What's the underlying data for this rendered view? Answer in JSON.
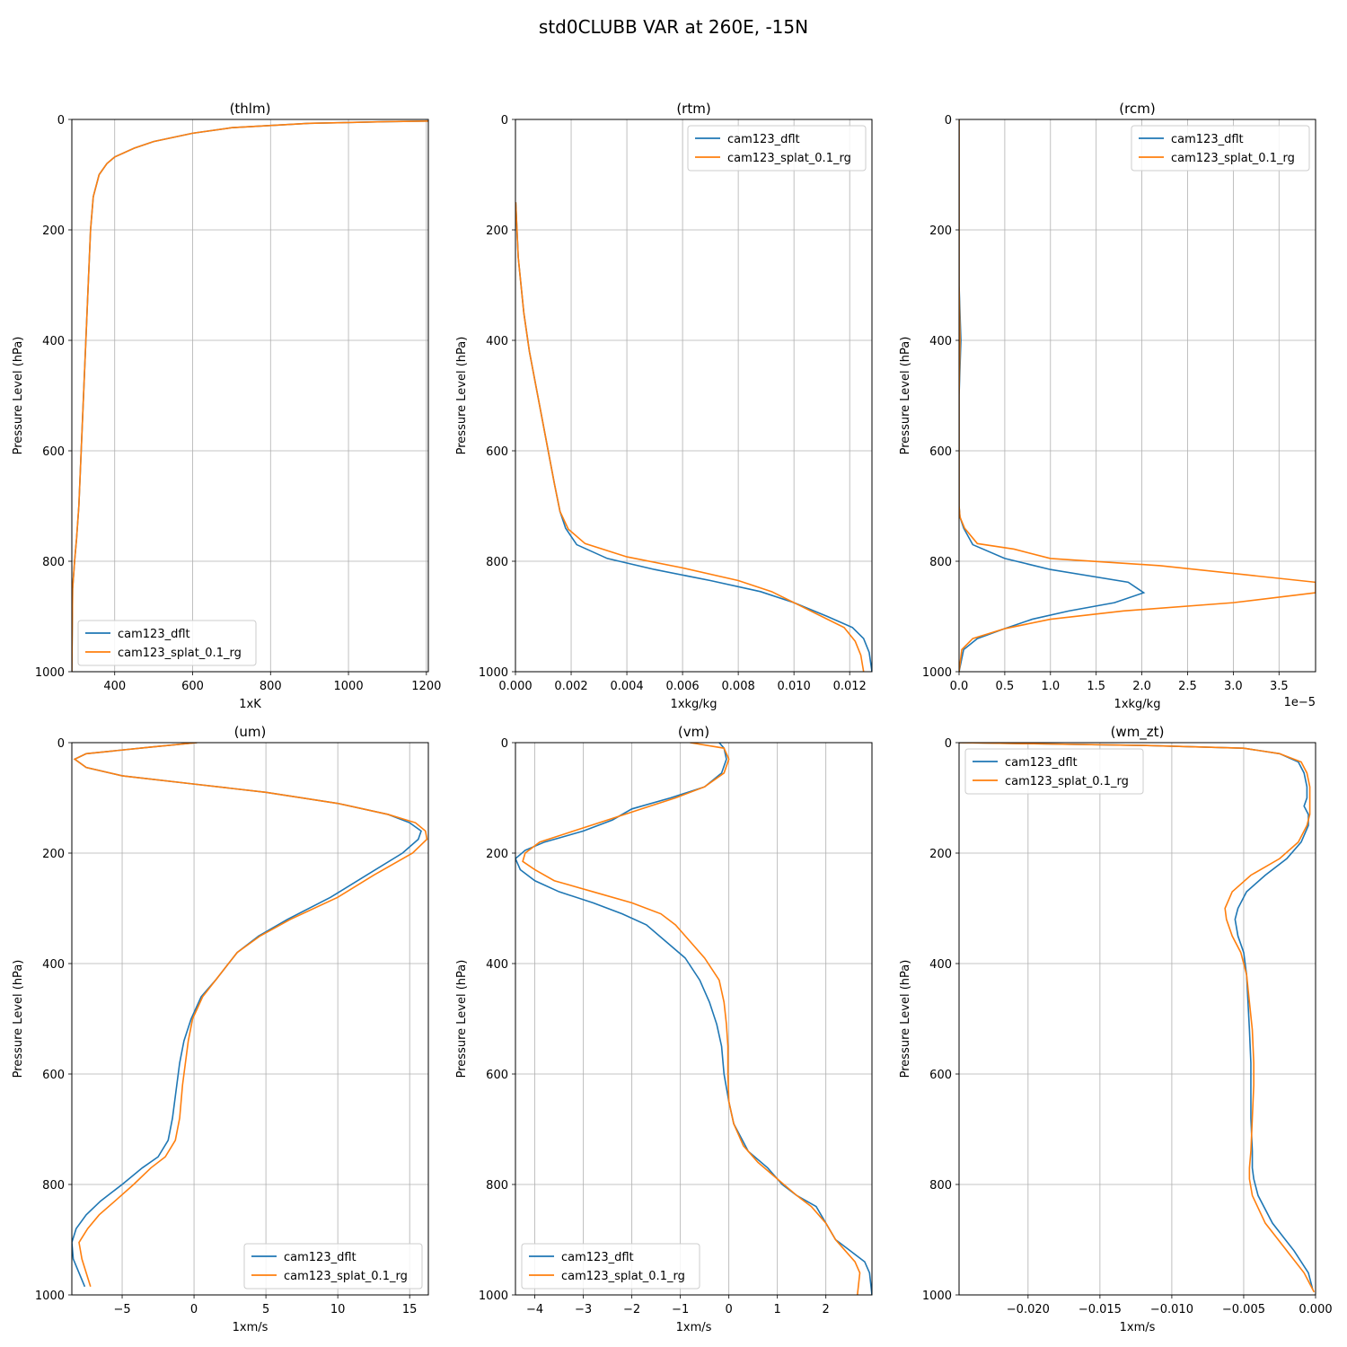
{
  "figure": {
    "suptitle": "std0CLUBB VAR at 260E, -15N"
  },
  "chart_data": [
    {
      "type": "line",
      "title": "(thlm)",
      "xlabel": "1xK",
      "ylabel": "Pressure Level (hPa)",
      "xlim": [
        290,
        1205
      ],
      "ylim": [
        1000,
        0
      ],
      "xticks": [
        400,
        600,
        800,
        1000,
        1200
      ],
      "xtick_labels": [
        "400",
        "600",
        "800",
        "1000",
        "1200"
      ],
      "yticks": [
        0,
        200,
        400,
        600,
        800,
        1000
      ],
      "ytick_labels": [
        "0",
        "200",
        "400",
        "600",
        "800",
        "1000"
      ],
      "grid": true,
      "legend": "lower-left",
      "series": [
        {
          "name": "cam123_dflt",
          "color": "#1f77b4",
          "x": [
            1205,
            1100,
            900,
            700,
            600,
            500,
            450,
            400,
            380,
            360,
            345,
            338,
            332,
            326,
            320,
            314,
            308,
            302,
            297,
            292,
            290
          ],
          "y": [
            3,
            4,
            7,
            15,
            25,
            40,
            52,
            68,
            80,
            100,
            140,
            200,
            300,
            400,
            500,
            600,
            700,
            760,
            800,
            850,
            1000
          ]
        },
        {
          "name": "cam123_splat_0.1_rg",
          "color": "#ff7f0e",
          "x": [
            1205,
            1100,
            900,
            700,
            600,
            500,
            450,
            400,
            380,
            360,
            345,
            338,
            332,
            326,
            320,
            314,
            308,
            302,
            297,
            292,
            290
          ],
          "y": [
            3,
            4,
            7,
            15,
            25,
            40,
            52,
            68,
            80,
            100,
            140,
            200,
            300,
            400,
            500,
            600,
            700,
            760,
            800,
            850,
            1000
          ]
        }
      ]
    },
    {
      "type": "line",
      "title": "(rtm)",
      "xlabel": "1xkg/kg",
      "ylabel": "Pressure Level (hPa)",
      "xlim": [
        0,
        0.0128
      ],
      "ylim": [
        1000,
        0
      ],
      "xticks": [
        0,
        0.002,
        0.004,
        0.006,
        0.008,
        0.01,
        0.012
      ],
      "xtick_labels": [
        "0.000",
        "0.002",
        "0.004",
        "0.006",
        "0.008",
        "0.010",
        "0.012"
      ],
      "yticks": [
        0,
        200,
        400,
        600,
        800,
        1000
      ],
      "ytick_labels": [
        "0",
        "200",
        "400",
        "600",
        "800",
        "1000"
      ],
      "grid": true,
      "legend": "upper-right",
      "series": [
        {
          "name": "cam123_dflt",
          "color": "#1f77b4",
          "x": [
            1e-05,
            0.0001,
            0.0003,
            0.0005,
            0.0008,
            0.0011,
            0.0014,
            0.0016,
            0.0018,
            0.0022,
            0.0033,
            0.005,
            0.007,
            0.0088,
            0.01,
            0.0112,
            0.0121,
            0.0125,
            0.0127,
            0.0128
          ],
          "y": [
            150,
            250,
            350,
            420,
            500,
            580,
            660,
            710,
            740,
            770,
            795,
            815,
            835,
            855,
            875,
            900,
            920,
            940,
            965,
            1000
          ]
        },
        {
          "name": "cam123_splat_0.1_rg",
          "color": "#ff7f0e",
          "x": [
            1e-05,
            0.0001,
            0.0003,
            0.0005,
            0.0008,
            0.0011,
            0.0014,
            0.0016,
            0.0019,
            0.0025,
            0.004,
            0.006,
            0.008,
            0.0092,
            0.01,
            0.011,
            0.0118,
            0.0122,
            0.0124,
            0.0125
          ],
          "y": [
            150,
            250,
            350,
            420,
            500,
            580,
            660,
            710,
            742,
            768,
            792,
            812,
            835,
            855,
            875,
            900,
            920,
            945,
            970,
            1000
          ]
        }
      ]
    },
    {
      "type": "line",
      "title": "(rcm)",
      "xlabel": "1xkg/kg",
      "ylabel": "Pressure Level (hPa)",
      "xlim": [
        0,
        3.9e-05
      ],
      "ylim": [
        1000,
        0
      ],
      "xticks": [
        0,
        5e-06,
        1e-05,
        1.5e-05,
        2e-05,
        2.5e-05,
        3e-05,
        3.5e-05
      ],
      "xtick_labels": [
        "0.0",
        "0.5",
        "1.0",
        "1.5",
        "2.0",
        "2.5",
        "3.0",
        "3.5"
      ],
      "x_offset_label": "1e−5",
      "yticks": [
        0,
        200,
        400,
        600,
        800,
        1000
      ],
      "ytick_labels": [
        "0",
        "200",
        "400",
        "600",
        "800",
        "1000"
      ],
      "grid": true,
      "legend": "upper-right",
      "series": [
        {
          "name": "cam123_dflt",
          "color": "#1f77b4",
          "x": [
            0,
            0,
            2e-07,
            0,
            0,
            0,
            1e-07,
            5e-07,
            1.5e-06,
            5e-06,
            1e-05,
            1.85e-05,
            2.02e-05,
            1.7e-05,
            1.2e-05,
            8e-06,
            5e-06,
            2e-06,
            5e-07,
            0
          ],
          "y": [
            0,
            300,
            400,
            500,
            600,
            700,
            720,
            740,
            770,
            795,
            815,
            838,
            857,
            875,
            890,
            905,
            922,
            940,
            960,
            1000
          ]
        },
        {
          "name": "cam123_splat_0.1_rg",
          "color": "#ff7f0e",
          "x": [
            0,
            0,
            1e-07,
            0,
            0,
            0,
            1e-07,
            6e-07,
            2e-06,
            6e-06,
            1e-05,
            2.2e-05,
            3.9e-05,
            3.9e-05,
            3e-05,
            1.8e-05,
            1e-05,
            5e-06,
            1.5e-06,
            3e-07,
            0
          ],
          "y": [
            0,
            300,
            400,
            500,
            600,
            700,
            720,
            740,
            768,
            778,
            795,
            808,
            838,
            857,
            875,
            890,
            905,
            922,
            940,
            960,
            1000
          ]
        }
      ]
    },
    {
      "type": "line",
      "title": "(um)",
      "xlabel": "1xm/s",
      "ylabel": "Pressure Level (hPa)",
      "xlim": [
        -8.5,
        16.3
      ],
      "ylim": [
        1000,
        0
      ],
      "xticks": [
        -5,
        0,
        5,
        10,
        15
      ],
      "xtick_labels": [
        "−5",
        "0",
        "5",
        "10",
        "15"
      ],
      "yticks": [
        0,
        200,
        400,
        600,
        800,
        1000
      ],
      "ytick_labels": [
        "0",
        "200",
        "400",
        "600",
        "800",
        "1000"
      ],
      "grid": true,
      "legend": "lower-right",
      "series": [
        {
          "name": "cam123_dflt",
          "color": "#1f77b4",
          "x": [
            0.2,
            -3,
            -7.5,
            -8.3,
            -7.5,
            -5,
            0,
            5,
            10,
            13.5,
            15,
            15.8,
            15.6,
            14.5,
            12,
            9.5,
            6.5,
            4.5,
            3,
            1.5,
            0.5,
            -0.2,
            -0.7,
            -1,
            -1.2,
            -1.5,
            -1.8,
            -2.5,
            -3.6,
            -5,
            -6.5,
            -7.5,
            -8.2,
            -8.5,
            -8.4,
            -8,
            -7.6
          ],
          "y": [
            0,
            8,
            20,
            30,
            45,
            60,
            75,
            90,
            110,
            130,
            145,
            160,
            175,
            200,
            240,
            280,
            320,
            350,
            380,
            430,
            460,
            500,
            540,
            580,
            620,
            680,
            720,
            750,
            770,
            800,
            830,
            855,
            880,
            905,
            935,
            960,
            985
          ]
        },
        {
          "name": "cam123_splat_0.1_rg",
          "color": "#ff7f0e",
          "x": [
            0.2,
            -3,
            -7.5,
            -8.3,
            -7.5,
            -5,
            0,
            5,
            10,
            13.5,
            15.4,
            16.1,
            16.2,
            15.2,
            12.5,
            10,
            6.7,
            4.6,
            3,
            1.5,
            0.6,
            -0.1,
            -0.4,
            -0.6,
            -0.8,
            -1,
            -1.3,
            -2,
            -3,
            -4.2,
            -5.5,
            -6.6,
            -7.4,
            -8,
            -7.8,
            -7.5,
            -7.2
          ],
          "y": [
            0,
            8,
            20,
            30,
            45,
            60,
            75,
            90,
            110,
            130,
            145,
            160,
            175,
            200,
            240,
            280,
            320,
            350,
            380,
            430,
            460,
            500,
            540,
            580,
            620,
            680,
            720,
            750,
            770,
            800,
            830,
            855,
            880,
            905,
            935,
            960,
            985
          ]
        }
      ]
    },
    {
      "type": "line",
      "title": "(vm)",
      "xlabel": "1xm/s",
      "ylabel": "Pressure Level (hPa)",
      "xlim": [
        -4.4,
        2.95
      ],
      "ylim": [
        1000,
        0
      ],
      "xticks": [
        -4,
        -3,
        -2,
        -1,
        0,
        1,
        2
      ],
      "xtick_labels": [
        "−4",
        "−3",
        "−2",
        "−1",
        "0",
        "1",
        "2"
      ],
      "yticks": [
        0,
        200,
        400,
        600,
        800,
        1000
      ],
      "ytick_labels": [
        "0",
        "200",
        "400",
        "600",
        "800",
        "1000"
      ],
      "grid": true,
      "legend": "lower-left",
      "series": [
        {
          "name": "cam123_dflt",
          "color": "#1f77b4",
          "x": [
            -0.2,
            -0.1,
            -0.05,
            -0.15,
            -0.5,
            -1.2,
            -2.0,
            -2.4,
            -3.0,
            -3.8,
            -4.2,
            -4.4,
            -4.3,
            -4.0,
            -3.5,
            -2.8,
            -2.2,
            -1.7,
            -1.3,
            -0.9,
            -0.6,
            -0.4,
            -0.25,
            -0.15,
            -0.1,
            0,
            0.1,
            0.4,
            0.8,
            1.1,
            1.4,
            1.8,
            2.0,
            2.2,
            2.5,
            2.8,
            2.9,
            2.95
          ],
          "y": [
            0,
            10,
            30,
            55,
            80,
            100,
            120,
            140,
            160,
            180,
            195,
            210,
            230,
            250,
            270,
            290,
            310,
            330,
            360,
            390,
            430,
            470,
            510,
            550,
            600,
            650,
            690,
            740,
            770,
            800,
            820,
            840,
            870,
            900,
            920,
            940,
            960,
            1000
          ]
        },
        {
          "name": "cam123_splat_0.1_rg",
          "color": "#ff7f0e",
          "x": [
            -0.8,
            -0.1,
            0,
            -0.1,
            -0.5,
            -1.1,
            -1.8,
            -2.5,
            -3.2,
            -3.9,
            -4.2,
            -4.25,
            -4.0,
            -3.6,
            -2.8,
            -2.0,
            -1.4,
            -1.1,
            -0.8,
            -0.5,
            -0.2,
            -0.1,
            -0.05,
            -0.02,
            -0.02,
            0,
            0.1,
            0.3,
            0.6,
            1.0,
            1.4,
            1.7,
            2.0,
            2.2,
            2.4,
            2.6,
            2.7,
            2.65
          ],
          "y": [
            0,
            10,
            30,
            55,
            80,
            100,
            120,
            140,
            160,
            180,
            200,
            215,
            230,
            250,
            270,
            290,
            310,
            330,
            360,
            390,
            430,
            470,
            510,
            550,
            600,
            650,
            690,
            730,
            760,
            790,
            820,
            840,
            870,
            900,
            920,
            940,
            960,
            1000
          ]
        }
      ]
    },
    {
      "type": "line",
      "title": "(wm_zt)",
      "xlabel": "1xm/s",
      "ylabel": "Pressure Level (hPa)",
      "xlim": [
        -0.0248,
        0
      ],
      "ylim": [
        1000,
        0
      ],
      "xticks": [
        -0.02,
        -0.015,
        -0.01,
        -0.005,
        0
      ],
      "xtick_labels": [
        "−0.020",
        "−0.015",
        "−0.010",
        "−0.005",
        "0.000"
      ],
      "yticks": [
        0,
        200,
        400,
        600,
        800,
        1000
      ],
      "ytick_labels": [
        "0",
        "200",
        "400",
        "600",
        "800",
        "1000"
      ],
      "grid": true,
      "legend": "upper-left",
      "series": [
        {
          "name": "cam123_dflt",
          "color": "#1f77b4",
          "x": [
            -0.0248,
            -0.012,
            -0.005,
            -0.0025,
            -0.0012,
            -0.0008,
            -0.0006,
            -0.0006,
            -0.0008,
            -0.0005,
            -0.0005,
            -0.001,
            -0.002,
            -0.0035,
            -0.0048,
            -0.0054,
            -0.0056,
            -0.0054,
            -0.005,
            -0.0048,
            -0.0047,
            -0.0046,
            -0.0045,
            -0.0045,
            -0.0045,
            -0.0044,
            -0.0044,
            -0.0043,
            -0.004,
            -0.003,
            -0.0015,
            -0.0005,
            -0.0002
          ],
          "y": [
            0,
            5,
            10,
            20,
            35,
            55,
            80,
            100,
            115,
            130,
            150,
            180,
            210,
            240,
            270,
            300,
            320,
            350,
            380,
            420,
            470,
            520,
            580,
            620,
            680,
            740,
            770,
            790,
            820,
            870,
            920,
            960,
            990
          ]
        },
        {
          "name": "cam123_splat_0.1_rg",
          "color": "#ff7f0e",
          "x": [
            -0.0248,
            -0.012,
            -0.005,
            -0.0025,
            -0.001,
            -0.0006,
            -0.0004,
            -0.0004,
            -0.0004,
            -0.0004,
            -0.0006,
            -0.0012,
            -0.0025,
            -0.0045,
            -0.0058,
            -0.0063,
            -0.0062,
            -0.0058,
            -0.0052,
            -0.0048,
            -0.0046,
            -0.0044,
            -0.0043,
            -0.0043,
            -0.0044,
            -0.0045,
            -0.0046,
            -0.0046,
            -0.0044,
            -0.0035,
            -0.002,
            -0.0008,
            -0.0001
          ],
          "y": [
            0,
            5,
            10,
            20,
            35,
            55,
            80,
            100,
            115,
            130,
            150,
            180,
            210,
            240,
            270,
            300,
            320,
            350,
            380,
            420,
            470,
            520,
            580,
            620,
            680,
            740,
            770,
            790,
            820,
            870,
            920,
            960,
            995
          ]
        }
      ]
    }
  ]
}
